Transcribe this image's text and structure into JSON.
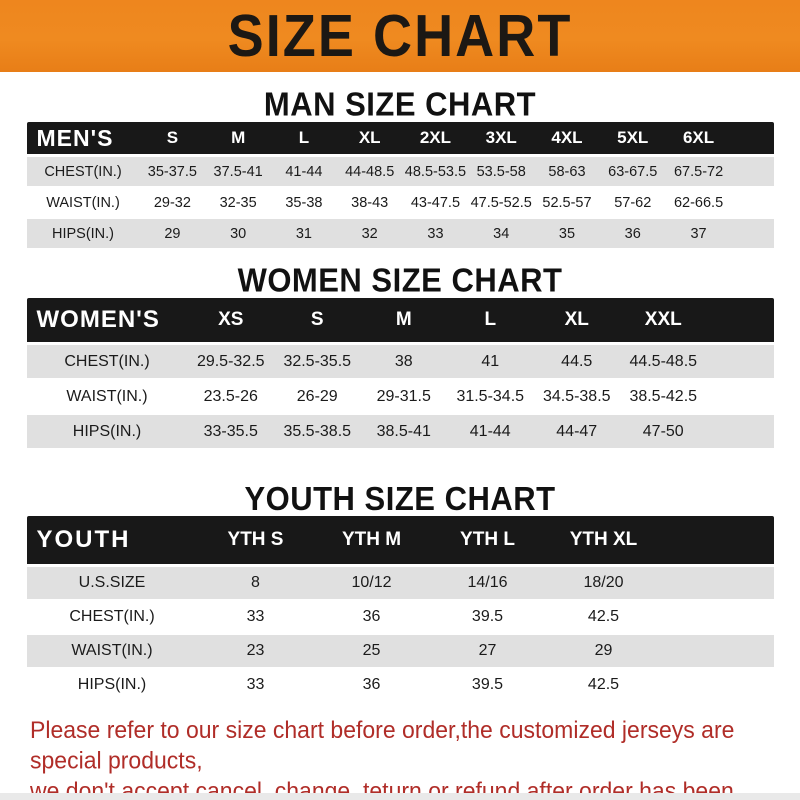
{
  "banner": {
    "title": "SIZE CHART"
  },
  "colors": {
    "banner_bg": "#ee861e",
    "banner_text": "#1c1814",
    "header_bg": "#181818",
    "header_text": "#ffffff",
    "row_alt_bg": "#e0e0e0",
    "cell_text": "#1b1b1b",
    "heading_text": "#111111",
    "disclaimer_text": "#b02d28"
  },
  "sections": [
    {
      "heading": "MAN SIZE CHART",
      "table": {
        "header_label": "MEN'S",
        "columns": [
          "S",
          "M",
          "L",
          "XL",
          "2XL",
          "3XL",
          "4XL",
          "5XL",
          "6XL"
        ],
        "rows": [
          {
            "label": "CHEST(IN.)",
            "values": [
              "35-37.5",
              "37.5-41",
              "41-44",
              "44-48.5",
              "48.5-53.5",
              "53.5-58",
              "58-63",
              "63-67.5",
              "67.5-72"
            ]
          },
          {
            "label": "WAIST(IN.)",
            "values": [
              "29-32",
              "32-35",
              "35-38",
              "38-43",
              "43-47.5",
              "47.5-52.5",
              "52.5-57",
              "57-62",
              "62-66.5"
            ]
          },
          {
            "label": "HIPS(IN.)",
            "values": [
              "29",
              "30",
              "31",
              "32",
              "33",
              "34",
              "35",
              "36",
              "37"
            ]
          }
        ]
      }
    },
    {
      "heading": "WOMEN SIZE CHART",
      "table": {
        "header_label": "WOMEN'S",
        "columns": [
          "XS",
          "S",
          "M",
          "L",
          "XL",
          "XXL"
        ],
        "rows": [
          {
            "label": "CHEST(IN.)",
            "values": [
              "29.5-32.5",
              "32.5-35.5",
              "38",
              "41",
              "44.5",
              "44.5-48.5"
            ]
          },
          {
            "label": "WAIST(IN.)",
            "values": [
              "23.5-26",
              "26-29",
              "29-31.5",
              "31.5-34.5",
              "34.5-38.5",
              "38.5-42.5"
            ]
          },
          {
            "label": "HIPS(IN.)",
            "values": [
              "33-35.5",
              "35.5-38.5",
              "38.5-41",
              "41-44",
              "44-47",
              "47-50"
            ]
          }
        ]
      }
    },
    {
      "heading": "YOUTH SIZE CHART",
      "table": {
        "header_label": "YOUTH",
        "columns": [
          "YTH S",
          "YTH M",
          "YTH L",
          "YTH XL"
        ],
        "rows": [
          {
            "label": "U.S.SIZE",
            "values": [
              "8",
              "10/12",
              "14/16",
              "18/20"
            ]
          },
          {
            "label": "CHEST(IN.)",
            "values": [
              "33",
              "36",
              "39.5",
              "42.5"
            ]
          },
          {
            "label": "WAIST(IN.)",
            "values": [
              "23",
              "25",
              "27",
              "29"
            ]
          },
          {
            "label": "HIPS(IN.)",
            "values": [
              "33",
              "36",
              "39.5",
              "42.5"
            ]
          }
        ]
      }
    }
  ],
  "footer": {
    "line1": "Please refer to our size chart before order,the customized jerseys are special products,",
    "line2": "we don't accept cancel, change, teturn or refund after order has been placed!"
  }
}
